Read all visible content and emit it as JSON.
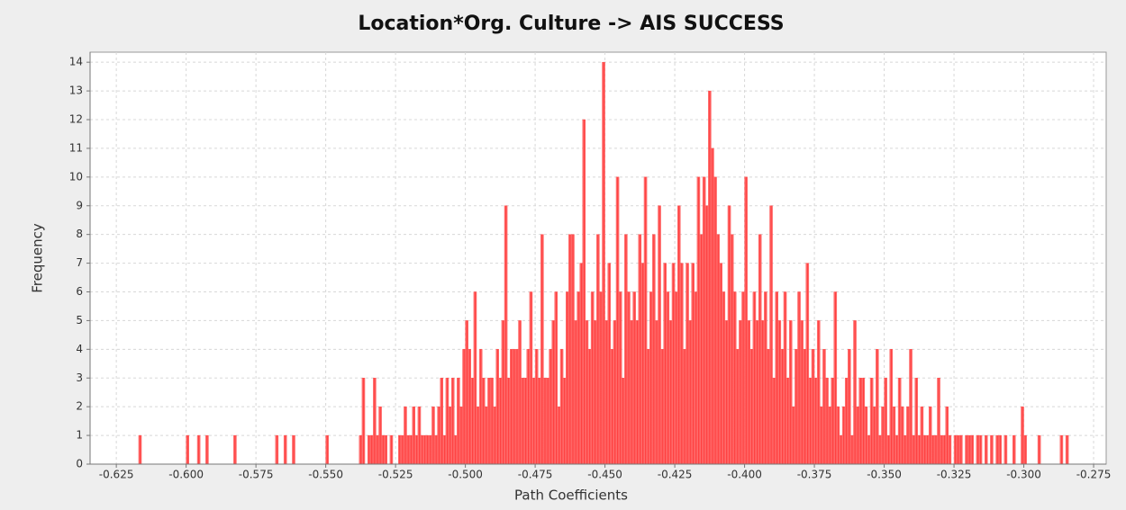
{
  "chart_data": {
    "type": "histogram",
    "title": "Location*Org. Culture -> AIS SUCCESS",
    "x_label": "Path Coefficients",
    "y_label": "Frequency",
    "color": "#ff4444",
    "grid": true,
    "xlim": [
      -0.6344,
      -0.2705
    ],
    "ylim": [
      0,
      14.35
    ],
    "xticks": [
      -0.625,
      {
        "value": -0.6,
        "label": "-0.600"
      },
      -0.575,
      {
        "value": -0.55,
        "label": "-0.550"
      },
      -0.525,
      {
        "value": -0.5,
        "label": "-0.500"
      },
      -0.475,
      {
        "value": -0.45,
        "label": "-0.450"
      },
      -0.425,
      {
        "value": -0.4,
        "label": "-0.400"
      },
      -0.375,
      {
        "value": -0.35,
        "label": "-0.350"
      },
      -0.325,
      {
        "value": -0.3,
        "label": "-0.300"
      },
      -0.275
    ],
    "yticks": [
      0,
      1,
      2,
      3,
      4,
      5,
      6,
      7,
      8,
      9,
      10,
      11,
      12,
      13,
      14
    ],
    "bins": [
      -0.62,
      -0.619,
      -0.618,
      -0.617,
      -0.616,
      -0.615,
      -0.614,
      -0.613,
      -0.612,
      -0.611,
      -0.61,
      -0.609,
      -0.608,
      -0.607,
      -0.606,
      -0.605,
      -0.604,
      -0.603,
      -0.602,
      -0.601,
      -0.6,
      -0.599,
      -0.598,
      -0.597,
      -0.596,
      -0.595,
      -0.594,
      -0.593,
      -0.592,
      -0.591,
      -0.59,
      -0.589,
      -0.588,
      -0.587,
      -0.586,
      -0.585,
      -0.584,
      -0.583,
      -0.582,
      -0.581,
      -0.58,
      -0.579,
      -0.578,
      -0.577,
      -0.576,
      -0.575,
      -0.574,
      -0.573,
      -0.572,
      -0.571,
      -0.57,
      -0.569,
      -0.568,
      -0.567,
      -0.566,
      -0.565,
      -0.564,
      -0.563,
      -0.562,
      -0.561,
      -0.56,
      -0.559,
      -0.558,
      -0.557,
      -0.556,
      -0.555,
      -0.554,
      -0.553,
      -0.552,
      -0.551,
      -0.55,
      -0.549,
      -0.548,
      -0.547,
      -0.546,
      -0.545,
      -0.544,
      -0.543,
      -0.542,
      -0.541,
      -0.54,
      -0.539,
      -0.538,
      -0.537,
      -0.536,
      -0.535,
      -0.534,
      -0.533,
      -0.532,
      -0.531,
      -0.53,
      -0.529,
      -0.528,
      -0.527,
      -0.526,
      -0.525,
      -0.524,
      -0.523,
      -0.522,
      -0.521,
      -0.52,
      -0.519,
      -0.518,
      -0.517,
      -0.516,
      -0.515,
      -0.514,
      -0.513,
      -0.512,
      -0.511,
      -0.51,
      -0.509,
      -0.508,
      -0.507,
      -0.506,
      -0.505,
      -0.504,
      -0.503,
      -0.502,
      -0.501,
      -0.5,
      -0.499,
      -0.498,
      -0.497,
      -0.496,
      -0.495,
      -0.494,
      -0.493,
      -0.492,
      -0.491,
      -0.49,
      -0.489,
      -0.488,
      -0.487,
      -0.486,
      -0.485,
      -0.484,
      -0.483,
      -0.482,
      -0.481,
      -0.48,
      -0.479,
      -0.478,
      -0.477,
      -0.476,
      -0.475,
      -0.474,
      -0.473,
      -0.472,
      -0.471,
      -0.47,
      -0.469,
      -0.468,
      -0.467,
      -0.466,
      -0.465,
      -0.464,
      -0.463,
      -0.462,
      -0.461,
      -0.46,
      -0.459,
      -0.458,
      -0.457,
      -0.456,
      -0.455,
      -0.454,
      -0.453,
      -0.452,
      -0.451,
      -0.45,
      -0.449,
      -0.448,
      -0.447,
      -0.446,
      -0.445,
      -0.444,
      -0.443,
      -0.442,
      -0.441,
      -0.44,
      -0.439,
      -0.438,
      -0.437,
      -0.436,
      -0.435,
      -0.434,
      -0.433,
      -0.432,
      -0.431,
      -0.43,
      -0.429,
      -0.428,
      -0.427,
      -0.426,
      -0.425,
      -0.424,
      -0.423,
      -0.422,
      -0.421,
      -0.42,
      -0.419,
      -0.418,
      -0.417,
      -0.416,
      -0.415,
      -0.414,
      -0.413,
      -0.412,
      -0.411,
      -0.41,
      -0.409,
      -0.408,
      -0.407,
      -0.406,
      -0.405,
      -0.404,
      -0.403,
      -0.402,
      -0.401,
      -0.4,
      -0.399,
      -0.398,
      -0.397,
      -0.396,
      -0.395,
      -0.394,
      -0.393,
      -0.392,
      -0.391,
      -0.39,
      -0.389,
      -0.388,
      -0.387,
      -0.386,
      -0.385,
      -0.384,
      -0.383,
      -0.382,
      -0.381,
      -0.38,
      -0.379,
      -0.378,
      -0.377,
      -0.376,
      -0.375,
      -0.374,
      -0.373,
      -0.372,
      -0.371,
      -0.37,
      -0.369,
      -0.368,
      -0.367,
      -0.366,
      -0.365,
      -0.364,
      -0.363,
      -0.362,
      -0.361,
      -0.36,
      -0.359,
      -0.358,
      -0.357,
      -0.356,
      -0.355,
      -0.354,
      -0.353,
      -0.352,
      -0.351,
      -0.35,
      -0.349,
      -0.348,
      -0.347,
      -0.346,
      -0.345,
      -0.344,
      -0.343,
      -0.342,
      -0.341,
      -0.34,
      -0.339,
      -0.338,
      -0.337,
      -0.336,
      -0.335,
      -0.334,
      -0.333,
      -0.332,
      -0.331,
      -0.33,
      -0.329,
      -0.328,
      -0.327,
      -0.326,
      -0.325,
      -0.324,
      -0.323,
      -0.322,
      -0.321,
      -0.32,
      -0.319,
      -0.318,
      -0.317,
      -0.316,
      -0.315,
      -0.314,
      -0.313,
      -0.312,
      -0.311,
      -0.31,
      -0.309,
      -0.308,
      -0.307,
      -0.306,
      -0.305,
      -0.304,
      -0.303,
      -0.302,
      -0.301,
      -0.3,
      -0.299,
      -0.298,
      -0.297,
      -0.296,
      -0.295,
      -0.294,
      -0.293,
      -0.292,
      -0.291,
      -0.29,
      -0.289,
      -0.288,
      -0.287,
      -0.286,
      -0.285,
      -0.284,
      -0.283,
      -0.282,
      -0.281,
      -0.28
    ],
    "values": [
      0,
      0,
      0,
      1,
      0,
      0,
      0,
      0,
      0,
      0,
      0,
      0,
      0,
      0,
      0,
      0,
      0,
      0,
      0,
      0,
      1,
      0,
      0,
      0,
      1,
      0,
      0,
      1,
      0,
      0,
      0,
      0,
      0,
      0,
      0,
      0,
      0,
      1,
      0,
      0,
      0,
      0,
      0,
      0,
      0,
      0,
      0,
      0,
      0,
      0,
      0,
      0,
      1,
      0,
      0,
      1,
      0,
      0,
      1,
      0,
      0,
      0,
      0,
      0,
      0,
      0,
      0,
      0,
      0,
      0,
      1,
      0,
      0,
      0,
      0,
      0,
      0,
      0,
      0,
      0,
      0,
      0,
      1,
      3,
      0,
      1,
      1,
      3,
      1,
      2,
      1,
      1,
      0,
      1,
      0,
      0,
      1,
      1,
      2,
      1,
      1,
      2,
      1,
      2,
      1,
      1,
      1,
      1,
      2,
      1,
      2,
      3,
      1,
      3,
      2,
      3,
      1,
      3,
      2,
      4,
      5,
      4,
      3,
      6,
      2,
      4,
      3,
      2,
      3,
      3,
      2,
      4,
      3,
      5,
      9,
      3,
      4,
      4,
      4,
      5,
      3,
      3,
      4,
      6,
      3,
      4,
      3,
      8,
      3,
      3,
      4,
      5,
      6,
      2,
      4,
      3,
      6,
      8,
      8,
      5,
      6,
      7,
      12,
      5,
      4,
      6,
      5,
      8,
      6,
      14,
      5,
      7,
      4,
      5,
      10,
      6,
      3,
      8,
      6,
      5,
      6,
      5,
      8,
      7,
      10,
      4,
      6,
      8,
      5,
      9,
      4,
      7,
      6,
      5,
      7,
      6,
      9,
      7,
      4,
      7,
      5,
      7,
      6,
      10,
      8,
      10,
      9,
      13,
      11,
      10,
      8,
      7,
      6,
      5,
      9,
      8,
      6,
      4,
      5,
      6,
      10,
      5,
      4,
      6,
      5,
      8,
      5,
      6,
      4,
      9,
      3,
      6,
      5,
      4,
      6,
      3,
      5,
      2,
      4,
      6,
      5,
      4,
      7,
      3,
      4,
      3,
      5,
      2,
      4,
      3,
      2,
      3,
      6,
      2,
      1,
      2,
      3,
      4,
      1,
      5,
      2,
      3,
      3,
      2,
      1,
      3,
      2,
      4,
      1,
      2,
      3,
      1,
      4,
      2,
      1,
      3,
      2,
      1,
      2,
      4,
      1,
      3,
      1,
      2,
      1,
      1,
      2,
      1,
      1,
      3,
      1,
      1,
      2,
      1,
      0,
      1,
      1,
      1,
      0,
      1,
      1,
      1,
      0,
      1,
      1,
      0,
      1,
      0,
      1,
      0,
      1,
      1,
      0,
      1,
      0,
      0,
      1,
      0,
      0,
      2,
      1,
      0,
      0,
      0,
      0,
      1,
      0,
      0,
      0,
      0,
      0,
      0,
      0,
      1,
      0,
      1,
      0,
      0,
      0,
      0
    ]
  }
}
